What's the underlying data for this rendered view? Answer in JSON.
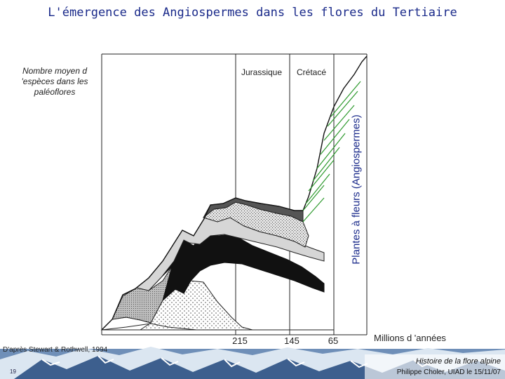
{
  "slide": {
    "title": "L'émergence des Angiospermes dans les flores du Tertiaire",
    "source": "D'après Stewart & Rothwell, 1994",
    "footer_course": "Histoire de la flore alpine",
    "footer_author": "Philippe Choler, UIAD le 15/11/07",
    "slide_number": "19"
  },
  "chart_data": {
    "type": "area",
    "title": "",
    "ylabel": "Nombre moyen d 'espèces dans les paléoflores",
    "xlabel": "Millions d 'années",
    "x_ticks": [
      "215",
      "145",
      "65"
    ],
    "periods": [
      "Jurassique",
      "Crétacé"
    ],
    "series_label": "Plantes à fleurs (Angiospermes)",
    "colors": {
      "title": "#1a2a8a",
      "angiosperm_hatch": "#2e9a2e",
      "bands": "#111111"
    },
    "grid": false
  }
}
